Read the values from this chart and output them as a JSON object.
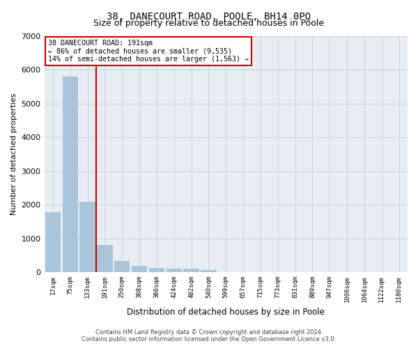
{
  "title": "38, DANECOURT ROAD, POOLE, BH14 0PQ",
  "subtitle": "Size of property relative to detached houses in Poole",
  "xlabel": "Distribution of detached houses by size in Poole",
  "ylabel": "Number of detached properties",
  "footer_line1": "Contains HM Land Registry data © Crown copyright and database right 2024.",
  "footer_line2": "Contains public sector information licensed under the Open Government Licence v3.0.",
  "annotation_title": "38 DANECOURT ROAD: 191sqm",
  "annotation_line2": "← 86% of detached houses are smaller (9,535)",
  "annotation_line3": "14% of semi-detached houses are larger (1,563) →",
  "bar_labels": [
    "17sqm",
    "75sqm",
    "133sqm",
    "191sqm",
    "250sqm",
    "308sqm",
    "366sqm",
    "424sqm",
    "482sqm",
    "540sqm",
    "599sqm",
    "657sqm",
    "715sqm",
    "773sqm",
    "831sqm",
    "889sqm",
    "947sqm",
    "1006sqm",
    "1064sqm",
    "1122sqm",
    "1180sqm"
  ],
  "bar_values": [
    1770,
    5800,
    2090,
    800,
    340,
    195,
    125,
    110,
    100,
    65,
    0,
    0,
    0,
    0,
    0,
    0,
    0,
    0,
    0,
    0,
    0
  ],
  "bar_color": "#aac4d9",
  "vline_color": "#cc0000",
  "vline_x_index": 3,
  "ylim": [
    0,
    7000
  ],
  "yticks": [
    0,
    1000,
    2000,
    3000,
    4000,
    5000,
    6000,
    7000
  ],
  "grid_color": "#c8d0da",
  "bg_color": "#e8edf4",
  "annotation_box_color": "#cc0000",
  "title_fontsize": 10,
  "subtitle_fontsize": 9
}
